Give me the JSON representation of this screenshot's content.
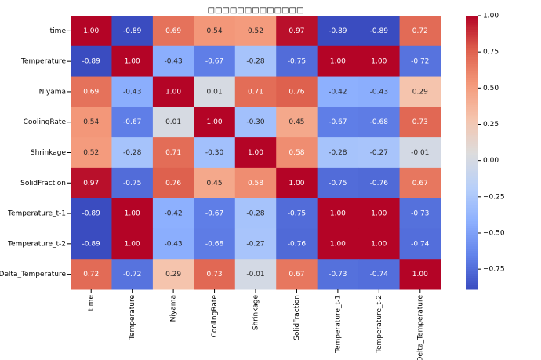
{
  "chart_data": {
    "type": "heatmap",
    "title": "□□□□□□□□□□□□□",
    "x_categories": [
      "time",
      "Temperature",
      "Niyama",
      "CoolingRate",
      "Shrinkage",
      "SolidFraction",
      "Temperature_t-1",
      "Temperature_t-2",
      "Delta_Temperature"
    ],
    "y_categories": [
      "time",
      "Temperature",
      "Niyama",
      "CoolingRate",
      "Shrinkage",
      "SolidFraction",
      "Temperature_t-1",
      "Temperature_t-2",
      "Delta_Temperature"
    ],
    "values": [
      [
        1,
        -0.89,
        0.69,
        0.54,
        0.52,
        0.97,
        -0.89,
        -0.89,
        0.72
      ],
      [
        -0.89,
        1,
        -0.43,
        -0.67,
        -0.28,
        -0.75,
        1,
        1,
        -0.72
      ],
      [
        0.69,
        -0.43,
        1,
        0.01,
        0.71,
        0.76,
        -0.42,
        -0.43,
        0.29
      ],
      [
        0.54,
        -0.67,
        0.01,
        1,
        -0.3,
        0.45,
        -0.67,
        -0.68,
        0.73
      ],
      [
        0.52,
        -0.28,
        0.71,
        -0.3,
        1,
        0.58,
        -0.28,
        -0.27,
        -0.01
      ],
      [
        0.97,
        -0.75,
        0.76,
        0.45,
        0.58,
        1,
        -0.75,
        -0.76,
        0.67
      ],
      [
        -0.89,
        1,
        -0.42,
        -0.67,
        -0.28,
        -0.75,
        1,
        1,
        -0.73
      ],
      [
        -0.89,
        1,
        -0.43,
        -0.68,
        -0.27,
        -0.76,
        1,
        1,
        -0.74
      ],
      [
        0.72,
        -0.72,
        0.29,
        0.73,
        -0.01,
        0.67,
        -0.73,
        -0.74,
        1
      ]
    ],
    "value_labels": [
      [
        "1.00",
        "-0.89",
        "0.69",
        "0.54",
        "0.52",
        "0.97",
        "-0.89",
        "-0.89",
        "0.72"
      ],
      [
        "-0.89",
        "1.00",
        "-0.43",
        "-0.67",
        "-0.28",
        "-0.75",
        "1.00",
        "1.00",
        "-0.72"
      ],
      [
        "0.69",
        "-0.43",
        "1.00",
        "0.01",
        "0.71",
        "0.76",
        "-0.42",
        "-0.43",
        "0.29"
      ],
      [
        "0.54",
        "-0.67",
        "0.01",
        "1.00",
        "-0.30",
        "0.45",
        "-0.67",
        "-0.68",
        "0.73"
      ],
      [
        "0.52",
        "-0.28",
        "0.71",
        "-0.30",
        "1.00",
        "0.58",
        "-0.28",
        "-0.27",
        "-0.01"
      ],
      [
        "0.97",
        "-0.75",
        "0.76",
        "0.45",
        "0.58",
        "1.00",
        "-0.75",
        "-0.76",
        "0.67"
      ],
      [
        "-0.89",
        "1.00",
        "-0.42",
        "-0.67",
        "-0.28",
        "-0.75",
        "1.00",
        "1.00",
        "-0.73"
      ],
      [
        "-0.89",
        "1.00",
        "-0.43",
        "-0.68",
        "-0.27",
        "-0.76",
        "1.00",
        "1.00",
        "-0.74"
      ],
      [
        "0.72",
        "-0.72",
        "0.29",
        "0.73",
        "-0.01",
        "0.67",
        "-0.73",
        "-0.74",
        "1.00"
      ]
    ],
    "colormap": "coolwarm",
    "clim": [
      -0.89,
      1
    ],
    "cticks": [
      {
        "value": 1,
        "label": "1.00"
      },
      {
        "value": 0.75,
        "label": "0.75"
      },
      {
        "value": 0.5,
        "label": "0.50"
      },
      {
        "value": 0.25,
        "label": "0.25"
      },
      {
        "value": 0,
        "label": "0.00"
      },
      {
        "value": -0.25,
        "label": "−0.25"
      },
      {
        "value": -0.5,
        "label": "−0.50"
      },
      {
        "value": -0.75,
        "label": "−0.75"
      }
    ]
  }
}
